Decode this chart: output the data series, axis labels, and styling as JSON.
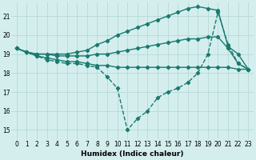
{
  "xlabel": "Humidex (Indice chaleur)",
  "bg_color": "#d4eeee",
  "grid_color": "#b8d8d8",
  "line_color": "#1a7a6e",
  "xlim": [
    -0.5,
    23.5
  ],
  "ylim": [
    14.5,
    21.7
  ],
  "yticks": [
    15,
    16,
    17,
    18,
    19,
    20,
    21
  ],
  "xticks": [
    0,
    1,
    2,
    3,
    4,
    5,
    6,
    7,
    8,
    9,
    10,
    11,
    12,
    13,
    14,
    15,
    16,
    17,
    18,
    19,
    20,
    21,
    22,
    23
  ],
  "curve_dashed": {
    "x": [
      0,
      1,
      2,
      3,
      4,
      5,
      6,
      7,
      8,
      9,
      10,
      11,
      12,
      13,
      14,
      15,
      16,
      17,
      18,
      19,
      20,
      21,
      22,
      23
    ],
    "y": [
      19.3,
      19.1,
      18.9,
      18.7,
      18.6,
      18.5,
      18.5,
      18.4,
      18.3,
      17.8,
      17.2,
      15.0,
      15.6,
      16.0,
      16.7,
      17.0,
      17.2,
      17.5,
      18.0,
      19.0,
      21.2,
      19.5,
      18.5,
      18.2
    ]
  },
  "curve_top": {
    "x": [
      0,
      1,
      2,
      3,
      4,
      5,
      6,
      7,
      8,
      9,
      10,
      11,
      12,
      13,
      14,
      15,
      16,
      17,
      18,
      19,
      20,
      21,
      22,
      23
    ],
    "y": [
      19.3,
      19.1,
      19.0,
      19.0,
      19.0,
      19.0,
      19.1,
      19.2,
      19.5,
      19.7,
      20.0,
      20.2,
      20.4,
      20.6,
      20.8,
      21.0,
      21.2,
      21.4,
      21.5,
      21.4,
      21.3,
      19.4,
      19.0,
      18.2
    ]
  },
  "curve_mid": {
    "x": [
      0,
      1,
      2,
      3,
      4,
      5,
      6,
      7,
      8,
      9,
      10,
      11,
      12,
      13,
      14,
      15,
      16,
      17,
      18,
      19,
      20,
      21,
      22,
      23
    ],
    "y": [
      19.3,
      19.1,
      19.0,
      19.0,
      18.9,
      18.9,
      18.9,
      18.9,
      19.0,
      19.0,
      19.1,
      19.2,
      19.3,
      19.4,
      19.5,
      19.6,
      19.7,
      19.8,
      19.8,
      19.9,
      19.9,
      19.3,
      18.5,
      18.2
    ]
  },
  "curve_flat": {
    "x": [
      0,
      1,
      2,
      3,
      4,
      5,
      6,
      7,
      8,
      9,
      10,
      11,
      12,
      13,
      14,
      15,
      16,
      17,
      18,
      19,
      20,
      21,
      22,
      23
    ],
    "y": [
      19.3,
      19.1,
      18.9,
      18.8,
      18.7,
      18.6,
      18.6,
      18.5,
      18.4,
      18.4,
      18.3,
      18.3,
      18.3,
      18.3,
      18.3,
      18.3,
      18.3,
      18.3,
      18.3,
      18.3,
      18.3,
      18.3,
      18.2,
      18.2
    ]
  }
}
